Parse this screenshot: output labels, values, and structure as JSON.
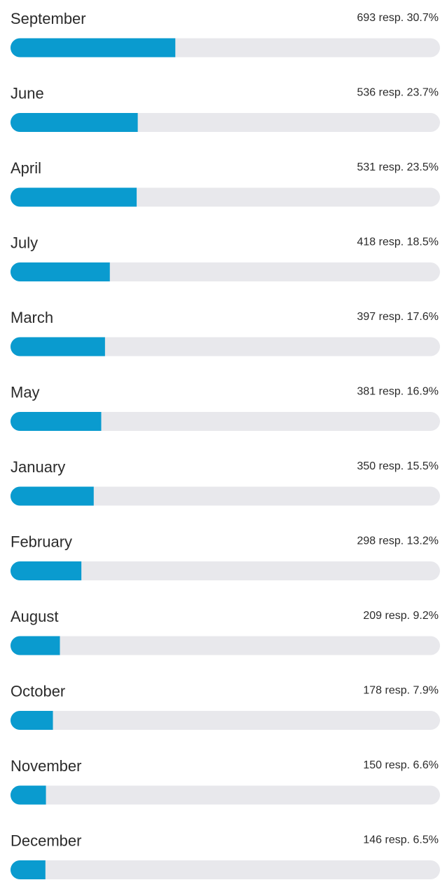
{
  "chart_data": {
    "type": "bar",
    "categories": [
      "September",
      "June",
      "April",
      "July",
      "March",
      "May",
      "January",
      "February",
      "August",
      "October",
      "November",
      "December"
    ],
    "values": [
      30.7,
      23.7,
      23.5,
      18.5,
      17.6,
      16.9,
      15.5,
      13.2,
      9.2,
      7.9,
      6.6,
      6.5
    ],
    "value_labels": [
      "693 resp. 30.7%",
      "536 resp. 23.7%",
      "531 resp. 23.5%",
      "418 resp. 18.5%",
      "397 resp. 17.6%",
      "381 resp. 16.9%",
      "350 resp. 15.5%",
      "298 resp. 13.2%",
      "209 resp. 9.2%",
      "178 resp. 7.9%",
      "150 resp. 6.6%",
      "146 resp. 6.5%"
    ],
    "color": "#0a9bcf",
    "track_color": "#e8e8ec",
    "xlim": [
      0,
      80
    ]
  }
}
